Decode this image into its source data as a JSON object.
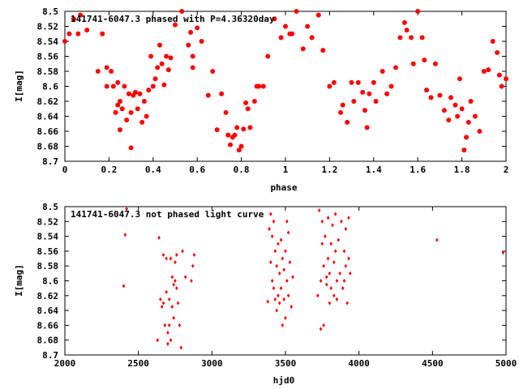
{
  "chart_data": [
    {
      "type": "scatter",
      "title": "141741-6047.3 phased with P=4.36320day",
      "xlabel": "phase",
      "ylabel": "I[mag]",
      "xlim": [
        0,
        2
      ],
      "ylim": [
        8.7,
        8.5
      ],
      "y_inverted": true,
      "grid": false,
      "marker_color": "#ff0000",
      "marker": "filled-circle",
      "xticks": [
        "0",
        "0.2",
        "0.4",
        "0.6",
        "0.8",
        "1",
        "1.2",
        "1.4",
        "1.6",
        "1.8",
        "2"
      ],
      "yticks": [
        "8.5",
        "8.52",
        "8.54",
        "8.56",
        "8.58",
        "8.6",
        "8.62",
        "8.64",
        "8.66",
        "8.68",
        "8.7"
      ],
      "x": [
        0.0,
        0.02,
        0.04,
        0.06,
        0.07,
        0.1,
        0.15,
        0.17,
        0.19,
        0.19,
        0.21,
        0.22,
        0.23,
        0.24,
        0.24,
        0.25,
        0.25,
        0.26,
        0.27,
        0.28,
        0.29,
        0.3,
        0.3,
        0.31,
        0.32,
        0.33,
        0.34,
        0.35,
        0.36,
        0.37,
        0.38,
        0.39,
        0.4,
        0.41,
        0.42,
        0.43,
        0.44,
        0.45,
        0.46,
        0.47,
        0.48,
        0.5,
        0.53,
        0.56,
        0.57,
        0.58,
        0.58,
        0.6,
        0.62,
        0.65,
        0.67,
        0.69,
        0.71,
        0.73,
        0.74,
        0.75,
        0.76,
        0.77,
        0.78,
        0.79,
        0.8,
        0.81,
        0.82,
        0.83,
        0.84,
        0.86,
        0.87,
        0.88,
        0.9,
        0.92,
        0.95,
        0.98,
        1.0,
        1.02,
        1.03,
        1.05,
        1.08,
        1.1,
        1.12,
        1.15,
        1.17,
        1.2,
        1.22,
        1.25,
        1.26,
        1.28,
        1.3,
        1.31,
        1.33,
        1.35,
        1.36,
        1.37,
        1.38,
        1.4,
        1.41,
        1.44,
        1.46,
        1.48,
        1.5,
        1.52,
        1.54,
        1.55,
        1.57,
        1.58,
        1.6,
        1.62,
        1.63,
        1.64,
        1.66,
        1.68,
        1.7,
        1.72,
        1.74,
        1.75,
        1.77,
        1.78,
        1.79,
        1.8,
        1.81,
        1.82,
        1.83,
        1.84,
        1.86,
        1.88,
        1.9,
        1.92,
        1.94,
        1.96,
        1.97,
        1.98,
        2.0
      ],
      "y": [
        8.54,
        8.53,
        8.51,
        8.53,
        8.505,
        8.525,
        8.58,
        8.53,
        8.575,
        8.6,
        8.58,
        8.6,
        8.635,
        8.625,
        8.595,
        8.62,
        8.658,
        8.63,
        8.6,
        8.645,
        8.61,
        8.635,
        8.682,
        8.612,
        8.608,
        8.63,
        8.61,
        8.648,
        8.62,
        8.64,
        8.605,
        8.56,
        8.6,
        8.59,
        8.575,
        8.545,
        8.57,
        8.598,
        8.56,
        8.578,
        8.562,
        8.518,
        8.5,
        8.545,
        8.528,
        8.56,
        8.575,
        8.522,
        8.54,
        8.612,
        8.58,
        8.658,
        8.61,
        8.635,
        8.665,
        8.678,
        8.668,
        8.665,
        8.655,
        8.685,
        8.68,
        8.657,
        8.622,
        8.63,
        8.655,
        8.62,
        8.6,
        8.6,
        8.6,
        8.56,
        8.51,
        8.535,
        8.52,
        8.53,
        8.53,
        8.5,
        8.55,
        8.52,
        8.535,
        8.505,
        8.552,
        8.6,
        8.595,
        8.635,
        8.625,
        8.648,
        8.595,
        8.62,
        8.595,
        8.608,
        8.632,
        8.655,
        8.61,
        8.595,
        8.62,
        8.58,
        8.61,
        8.6,
        8.575,
        8.535,
        8.515,
        8.525,
        8.535,
        8.57,
        8.5,
        8.535,
        8.565,
        8.605,
        8.615,
        8.57,
        8.612,
        8.632,
        8.645,
        8.615,
        8.625,
        8.64,
        8.59,
        8.63,
        8.685,
        8.668,
        8.648,
        8.62,
        8.64,
        8.66,
        8.58,
        8.578,
        8.54,
        8.555,
        8.585,
        8.6,
        8.59
      ]
    },
    {
      "type": "scatter",
      "title": "141741-6047.3 not phased light curve",
      "xlabel": "hjd0",
      "ylabel": "I[mag]",
      "xlim": [
        2000,
        5000
      ],
      "ylim": [
        8.7,
        8.5
      ],
      "y_inverted": true,
      "grid": false,
      "marker_color": "#ff0000",
      "marker": "small-diamond",
      "xticks": [
        "2000",
        "2500",
        "3000",
        "3500",
        "4000",
        "4500",
        "5000"
      ],
      "yticks": [
        "8.5",
        "8.52",
        "8.54",
        "8.56",
        "8.58",
        "8.6",
        "8.62",
        "8.64",
        "8.66",
        "8.68",
        "8.7"
      ],
      "x": [
        2400,
        2410,
        2420,
        2630,
        2640,
        2650,
        2660,
        2670,
        2670,
        2680,
        2690,
        2690,
        2700,
        2700,
        2710,
        2710,
        2720,
        2720,
        2730,
        2730,
        2740,
        2740,
        2750,
        2750,
        2760,
        2760,
        2770,
        2780,
        2790,
        2800,
        2820,
        2860,
        2870,
        2880,
        3380,
        3390,
        3400,
        3400,
        3410,
        3410,
        3420,
        3420,
        3430,
        3430,
        3440,
        3440,
        3450,
        3450,
        3460,
        3460,
        3470,
        3470,
        3480,
        3480,
        3490,
        3490,
        3500,
        3500,
        3510,
        3510,
        3520,
        3520,
        3530,
        3540,
        3550,
        3720,
        3730,
        3740,
        3740,
        3750,
        3750,
        3760,
        3760,
        3770,
        3780,
        3780,
        3790,
        3790,
        3800,
        3800,
        3810,
        3810,
        3820,
        3830,
        3830,
        3840,
        3840,
        3850,
        3850,
        3860,
        3870,
        3880,
        3890,
        3900,
        3900,
        3910,
        3910,
        3920,
        3930,
        3930,
        3940,
        4530,
        4980
      ],
      "y": [
        8.607,
        8.538,
        8.503,
        8.68,
        8.542,
        8.625,
        8.635,
        8.565,
        8.63,
        8.66,
        8.57,
        8.615,
        8.685,
        8.67,
        8.625,
        8.66,
        8.57,
        8.68,
        8.595,
        8.635,
        8.605,
        8.65,
        8.575,
        8.6,
        8.565,
        8.61,
        8.63,
        8.66,
        8.69,
        8.56,
        8.595,
        8.6,
        8.58,
        8.565,
        8.628,
        8.53,
        8.51,
        8.575,
        8.54,
        8.6,
        8.52,
        8.61,
        8.56,
        8.625,
        8.58,
        8.64,
        8.55,
        8.62,
        8.59,
        8.63,
        8.545,
        8.61,
        8.57,
        8.66,
        8.585,
        8.625,
        8.56,
        8.65,
        8.52,
        8.6,
        8.535,
        8.62,
        8.575,
        8.635,
        8.595,
        8.62,
        8.505,
        8.6,
        8.665,
        8.52,
        8.55,
        8.58,
        8.66,
        8.54,
        8.595,
        8.605,
        8.515,
        8.57,
        8.59,
        8.63,
        8.55,
        8.61,
        8.525,
        8.575,
        8.62,
        8.51,
        8.56,
        8.6,
        8.625,
        8.545,
        8.59,
        8.52,
        8.61,
        8.56,
        8.6,
        8.53,
        8.58,
        8.63,
        8.57,
        8.515,
        8.59,
        8.545,
        8.562
      ]
    }
  ]
}
